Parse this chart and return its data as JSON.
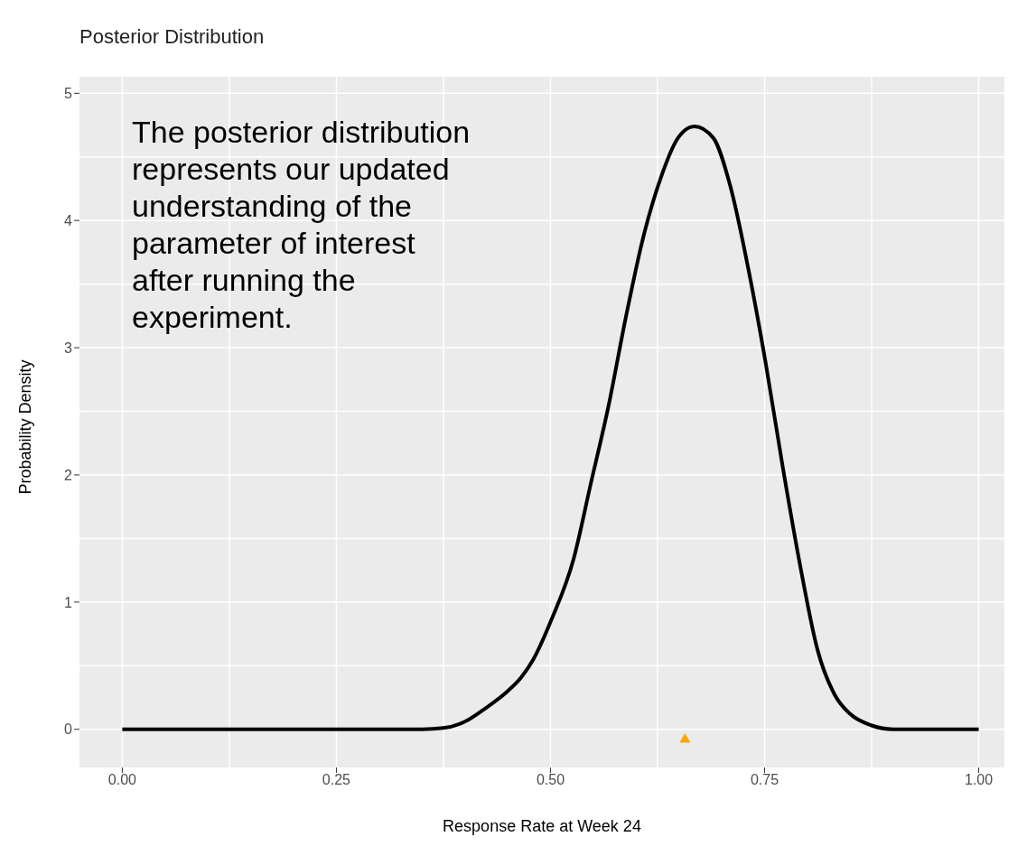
{
  "chart_data": {
    "type": "line",
    "title": "Posterior Distribution",
    "xlabel": "Response Rate at Week 24",
    "ylabel": "Probability Density",
    "annotations": [
      "The posterior distribution represents our updated understanding of the parameter of interest after running the experiment."
    ],
    "xlim": [
      -0.05,
      1.03
    ],
    "ylim": [
      -0.3,
      5.13
    ],
    "xticks": [
      {
        "value": 0,
        "label": "0.00"
      },
      {
        "value": 0.25,
        "label": "0.25"
      },
      {
        "value": 0.5,
        "label": "0.50"
      },
      {
        "value": 0.75,
        "label": "0.75"
      },
      {
        "value": 1,
        "label": "1.00"
      }
    ],
    "yticks": [
      0,
      1,
      2,
      3,
      4,
      5
    ],
    "grid": true,
    "series": [
      {
        "color": "#000000",
        "marker": "none",
        "x": [
          0,
          0.1,
          0.2,
          0.3,
          0.35,
          0.375,
          0.4,
          0.425,
          0.45,
          0.466,
          0.48,
          0.501,
          0.527,
          0.547,
          0.568,
          0.588,
          0.608,
          0.629,
          0.649,
          0.668,
          0.69,
          0.71,
          0.731,
          0.751,
          0.771,
          0.792,
          0.812,
          0.832,
          0.85,
          0.875,
          0.9,
          0.95,
          1
        ],
        "values": [
          0,
          0,
          0,
          0,
          0,
          0.01,
          0.06,
          0.17,
          0.3,
          0.41,
          0.55,
          0.86,
          1.34,
          1.93,
          2.55,
          3.24,
          3.86,
          4.34,
          4.65,
          4.74,
          4.65,
          4.27,
          3.62,
          2.89,
          2.07,
          1.27,
          0.62,
          0.27,
          0.12,
          0.03,
          0,
          0,
          0
        ]
      },
      {
        "type": "scatter",
        "color": "#ffa500",
        "marker": "triangle",
        "x": [
          0.657
        ],
        "values": [
          -0.08
        ]
      }
    ]
  }
}
